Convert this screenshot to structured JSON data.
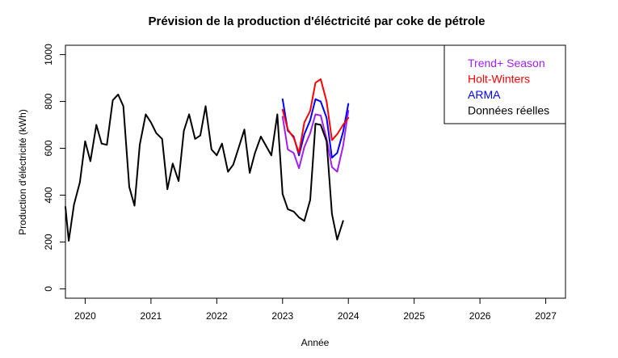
{
  "chart_data": {
    "type": "line",
    "title": "Prévision de la production d'éléctricité par coke de pétrole",
    "xlabel": "Année",
    "ylabel": "Production d'éléctricité (kWh)",
    "xlim": [
      2019.7,
      2027.3
    ],
    "ylim": [
      -40,
      1040
    ],
    "x_ticks": [
      2020,
      2021,
      2022,
      2023,
      2024,
      2025,
      2026,
      2027
    ],
    "x_tick_labels": [
      "2020",
      "2021",
      "2022",
      "2023",
      "2024",
      "2025",
      "2026",
      "2027"
    ],
    "y_ticks": [
      0,
      200,
      400,
      600,
      800,
      1000
    ],
    "y_tick_labels": [
      "0",
      "200",
      "400",
      "600",
      "800",
      "1000"
    ],
    "grid": false,
    "legend_position": "top-right",
    "legend_order": [
      "Trend+ Season",
      "Holt-Winters",
      "ARMA",
      "Données réelles"
    ],
    "series": [
      {
        "name": "Données réelles",
        "color": "#000000",
        "x": [
          2019.7,
          2019.75,
          2019.83,
          2019.92,
          2020.0,
          2020.08,
          2020.17,
          2020.25,
          2020.33,
          2020.42,
          2020.5,
          2020.58,
          2020.67,
          2020.75,
          2020.83,
          2020.92,
          2021.0,
          2021.08,
          2021.17,
          2021.25,
          2021.33,
          2021.42,
          2021.5,
          2021.58,
          2021.67,
          2021.75,
          2021.83,
          2021.92,
          2022.0,
          2022.08,
          2022.17,
          2022.25,
          2022.33,
          2022.42,
          2022.5,
          2022.58,
          2022.67,
          2022.75,
          2022.83,
          2022.92,
          2023.0,
          2023.08,
          2023.17,
          2023.25,
          2023.33,
          2023.42,
          2023.5,
          2023.58,
          2023.67,
          2023.75,
          2023.83,
          2023.92
        ],
        "values": [
          350,
          205,
          360,
          455,
          630,
          545,
          700,
          620,
          615,
          805,
          830,
          780,
          435,
          355,
          615,
          745,
          710,
          665,
          640,
          425,
          535,
          460,
          675,
          745,
          640,
          655,
          780,
          595,
          570,
          620,
          500,
          530,
          600,
          680,
          495,
          580,
          650,
          610,
          570,
          745,
          405,
          340,
          330,
          305,
          290,
          380,
          705,
          700,
          630,
          320,
          210,
          290
        ]
      },
      {
        "name": "Trend+ Season",
        "color": "#a020f0",
        "x": [
          2023.0,
          2023.08,
          2023.17,
          2023.25,
          2023.33,
          2023.42,
          2023.5,
          2023.58,
          2023.67,
          2023.75,
          2023.83,
          2023.92,
          2024.0
        ],
        "values": [
          735,
          595,
          580,
          515,
          605,
          665,
          745,
          740,
          640,
          520,
          500,
          610,
          760
        ]
      },
      {
        "name": "Holt-Winters",
        "color": "#ff0000",
        "x": [
          2023.0,
          2023.08,
          2023.17,
          2023.25,
          2023.33,
          2023.42,
          2023.5,
          2023.58,
          2023.67,
          2023.75,
          2023.83,
          2023.92,
          2024.0
        ],
        "values": [
          765,
          680,
          645,
          580,
          710,
          760,
          880,
          895,
          800,
          635,
          660,
          700,
          730
        ]
      },
      {
        "name": "ARMA",
        "color": "#0000ff",
        "x": [
          2023.0,
          2023.08,
          2023.17,
          2023.25,
          2023.33,
          2023.42,
          2023.5,
          2023.58,
          2023.67,
          2023.75,
          2023.83,
          2023.92,
          2024.0
        ],
        "values": [
          810,
          675,
          650,
          570,
          660,
          720,
          810,
          800,
          730,
          560,
          580,
          670,
          790
        ]
      }
    ]
  }
}
